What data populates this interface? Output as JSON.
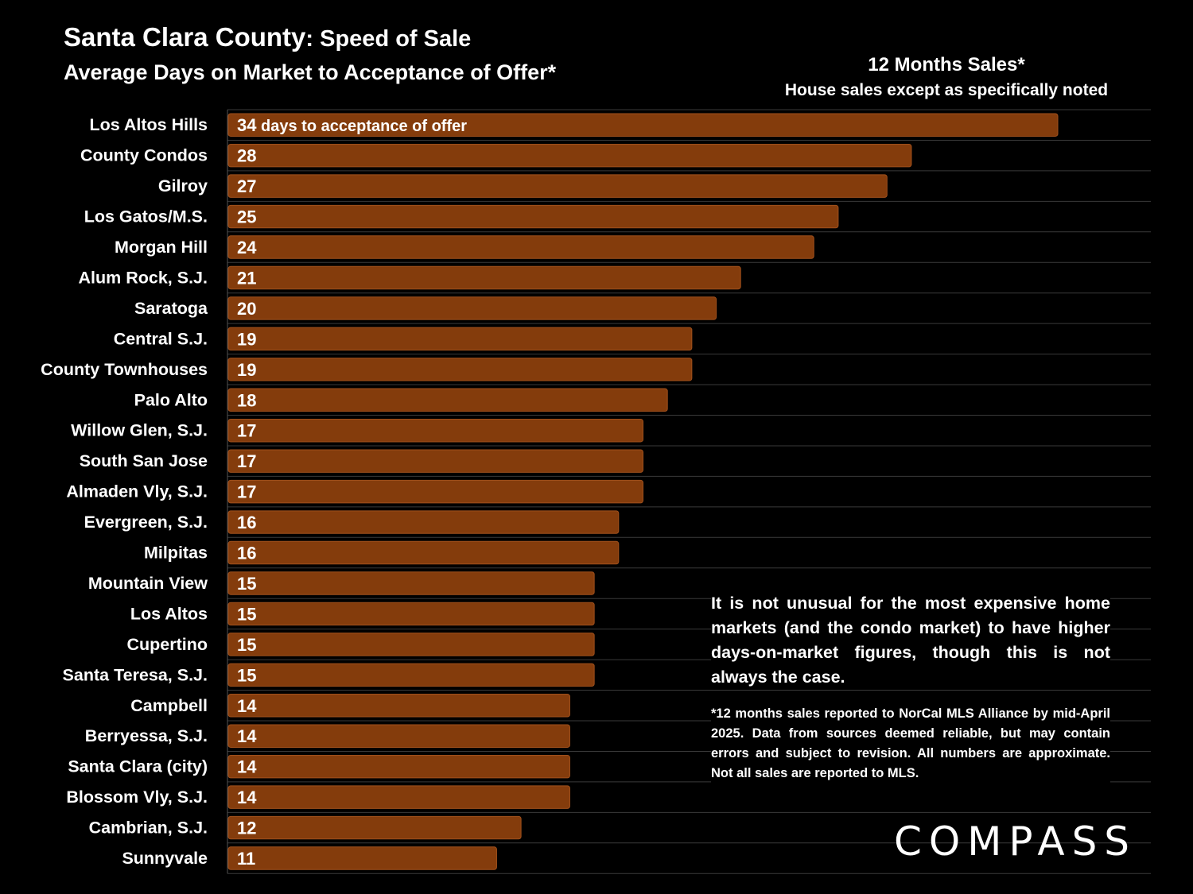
{
  "header": {
    "title_main": "Santa Clara County",
    "title_sep": ": ",
    "title_sub": "Speed of Sale",
    "subtitle": "Average Days on Market to Acceptance of Offer*",
    "side_title": "12 Months Sales*",
    "side_subtitle": "House sales except as specifically noted"
  },
  "note": "It is not unusual for the most expensive home markets (and the condo market) to have higher days-on-market figures, though this is not always the case.",
  "footnote": "*12 months sales reported to NorCal MLS Alliance by mid-April 2025. Data from sources deemed reliable, but may contain errors and subject to revision. All numbers are approximate. Not all sales are reported to MLS.",
  "logo": "COMPASS",
  "colors": {
    "bar": "#843c0c",
    "bar_border": "#a0501c",
    "grid": "#3a3a3a",
    "background": "#000000",
    "text": "#ffffff"
  },
  "chart_data": {
    "type": "bar",
    "orientation": "horizontal",
    "first_label_suffix": " days to acceptance of offer",
    "categories": [
      "Los Altos Hills",
      "County Condos",
      "Gilroy",
      "Los Gatos/M.S.",
      "Morgan Hill",
      "Alum Rock, S.J.",
      "Saratoga",
      "Central S.J.",
      "County Townhouses",
      "Palo Alto",
      "Willow Glen, S.J.",
      "South San Jose",
      "Almaden Vly, S.J.",
      "Evergreen, S.J.",
      "Milpitas",
      "Mountain View",
      "Los Altos",
      "Cupertino",
      "Santa Teresa, S.J.",
      "Campbell",
      "Berryessa, S.J.",
      "Santa Clara (city)",
      "Blossom Vly, S.J.",
      "Cambrian, S.J.",
      "Sunnyvale"
    ],
    "values": [
      34,
      28,
      27,
      25,
      24,
      21,
      20,
      19,
      19,
      18,
      17,
      17,
      17,
      16,
      16,
      15,
      15,
      15,
      15,
      14,
      14,
      14,
      14,
      12,
      11
    ],
    "xlim": [
      0,
      38
    ],
    "grid": true,
    "legend": "none"
  }
}
